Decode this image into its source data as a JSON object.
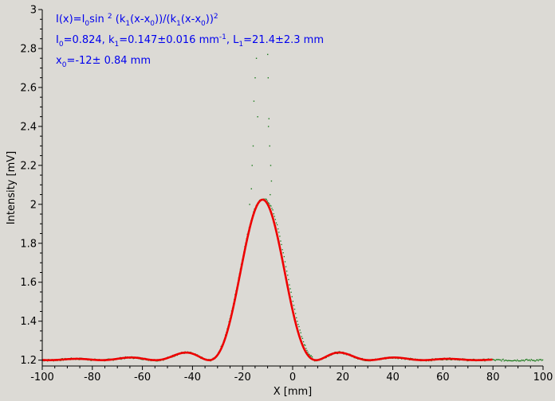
{
  "chart_data": {
    "type": "scatter",
    "xlabel": "X [mm]",
    "ylabel": "Intensity [mV]",
    "xlim": [
      -100,
      100
    ],
    "ylim": [
      1.17,
      3.0
    ],
    "xticks": [
      -100,
      -80,
      -60,
      -40,
      -20,
      0,
      20,
      40,
      60,
      80,
      100
    ],
    "xtick_labels": [
      "-100",
      "-80",
      "-60",
      "-40",
      "-20",
      "0",
      "20",
      "40",
      "60",
      "80",
      "100"
    ],
    "yticks": [
      1.2,
      1.4,
      1.6,
      1.8,
      2,
      2.2,
      2.4,
      2.6,
      2.8,
      3
    ],
    "ytick_labels": [
      "1.2",
      "1.4",
      "1.6",
      "1.8",
      "2",
      "2.2",
      "2.4",
      "2.6",
      "2.8",
      "3"
    ],
    "grid": false,
    "annotations": [
      {
        "line": 1,
        "parts": [
          {
            "t": "I(x)=I"
          },
          {
            "t": "0",
            "sub": true
          },
          {
            "t": "sin "
          },
          {
            "t": "2",
            "sup": true
          },
          {
            "t": " (k"
          },
          {
            "t": "1",
            "sub": true
          },
          {
            "t": "(x-x"
          },
          {
            "t": "0",
            "sub": true
          },
          {
            "t": "))/(k"
          },
          {
            "t": "1",
            "sub": true
          },
          {
            "t": "(x-x"
          },
          {
            "t": "0",
            "sub": true
          },
          {
            "t": "))"
          },
          {
            "t": "2",
            "sup": true
          }
        ]
      },
      {
        "line": 2,
        "parts": [
          {
            "t": "I"
          },
          {
            "t": "0",
            "sub": true
          },
          {
            "t": "=0.824,  k"
          },
          {
            "t": "1",
            "sub": true
          },
          {
            "t": "=0.147±0.016 mm"
          },
          {
            "t": "-1",
            "sup": true
          },
          {
            "t": ",   L"
          },
          {
            "t": "1",
            "sub": true
          },
          {
            "t": "=21.4±2.3 mm"
          }
        ]
      },
      {
        "line": 3,
        "parts": [
          {
            "t": "x"
          },
          {
            "t": "0",
            "sub": true
          },
          {
            "t": "=-12±   0.84 mm"
          }
        ]
      }
    ],
    "series": [
      {
        "kind": "measured",
        "style": "dots",
        "color": "#1a7a1a",
        "x_range": [
          -100,
          100
        ],
        "peak_spikes": [
          {
            "x": -14.5,
            "y": 2.75
          },
          {
            "x": -15.0,
            "y": 2.65
          },
          {
            "x": -15.5,
            "y": 2.53
          },
          {
            "x": -14.0,
            "y": 2.45
          },
          {
            "x": -15.8,
            "y": 2.3
          },
          {
            "x": -16.2,
            "y": 2.2
          },
          {
            "x": -16.5,
            "y": 2.08
          },
          {
            "x": -10.0,
            "y": 2.77
          },
          {
            "x": -9.8,
            "y": 2.65
          },
          {
            "x": -9.5,
            "y": 2.44
          },
          {
            "x": -9.7,
            "y": 2.4
          },
          {
            "x": -9.2,
            "y": 2.3
          },
          {
            "x": -8.8,
            "y": 2.2
          },
          {
            "x": -8.5,
            "y": 2.12
          },
          {
            "x": -9.0,
            "y": 2.05
          },
          {
            "x": -17.2,
            "y": 2.0
          }
        ]
      },
      {
        "kind": "fit",
        "style": "line",
        "color": "#ee0000",
        "x_range": [
          -100,
          80
        ],
        "I0": 0.824,
        "k1": 0.147,
        "x0": -12,
        "offset": 1.2
      }
    ]
  }
}
